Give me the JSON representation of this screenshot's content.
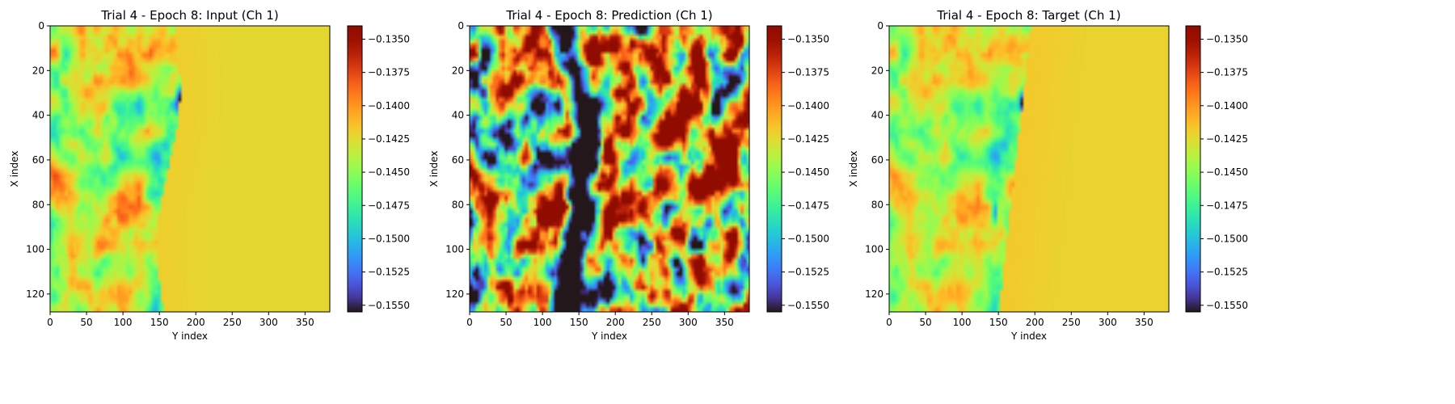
{
  "chart_data": [
    {
      "type": "heatmap",
      "title": "Trial 4 - Epoch 8: Input (Ch 1)",
      "xlabel": "Y index",
      "ylabel": "X index",
      "xlim": [
        0,
        384
      ],
      "ylim": [
        128,
        0
      ],
      "xticks": [
        0,
        50,
        100,
        150,
        200,
        250,
        300,
        350
      ],
      "yticks": [
        0,
        20,
        40,
        60,
        80,
        100,
        120
      ],
      "colormap": "turbo",
      "colorbar": {
        "range": [
          -0.1555,
          -0.134
        ],
        "ticks": [
          "−0.1350",
          "−0.1375",
          "−0.1400",
          "−0.1425",
          "−0.1450",
          "−0.1475",
          "−0.1500",
          "−0.1525",
          "−0.1550"
        ],
        "tick_values": [
          -0.135,
          -0.1375,
          -0.14,
          -0.1425,
          -0.145,
          -0.1475,
          -0.15,
          -0.1525,
          -0.155
        ]
      },
      "field": {
        "mode": "input"
      }
    },
    {
      "type": "heatmap",
      "title": "Trial 4 - Epoch 8: Prediction (Ch 1)",
      "xlabel": "Y index",
      "ylabel": "X index",
      "xlim": [
        0,
        384
      ],
      "ylim": [
        128,
        0
      ],
      "xticks": [
        0,
        50,
        100,
        150,
        200,
        250,
        300,
        350
      ],
      "yticks": [
        0,
        20,
        40,
        60,
        80,
        100,
        120
      ],
      "colormap": "turbo",
      "colorbar": {
        "range": [
          -0.1555,
          -0.134
        ],
        "ticks": [
          "−0.1350",
          "−0.1375",
          "−0.1400",
          "−0.1425",
          "−0.1450",
          "−0.1475",
          "−0.1500",
          "−0.1525",
          "−0.1550"
        ],
        "tick_values": [
          -0.135,
          -0.1375,
          -0.14,
          -0.1425,
          -0.145,
          -0.1475,
          -0.15,
          -0.1525,
          -0.155
        ]
      },
      "field": {
        "mode": "prediction"
      }
    },
    {
      "type": "heatmap",
      "title": "Trial 4 - Epoch 8: Target (Ch 1)",
      "xlabel": "Y index",
      "ylabel": "X index",
      "xlim": [
        0,
        384
      ],
      "ylim": [
        128,
        0
      ],
      "xticks": [
        0,
        50,
        100,
        150,
        200,
        250,
        300,
        350
      ],
      "yticks": [
        0,
        20,
        40,
        60,
        80,
        100,
        120
      ],
      "colormap": "turbo",
      "colorbar": {
        "range": [
          -0.1555,
          -0.134
        ],
        "ticks": [
          "−0.1350",
          "−0.1375",
          "−0.1400",
          "−0.1425",
          "−0.1450",
          "−0.1475",
          "−0.1500",
          "−0.1525",
          "−0.1550"
        ],
        "tick_values": [
          -0.135,
          -0.1375,
          -0.14,
          -0.1425,
          -0.145,
          -0.1475,
          -0.15,
          -0.1525,
          -0.155
        ]
      },
      "field": {
        "mode": "target"
      }
    }
  ]
}
